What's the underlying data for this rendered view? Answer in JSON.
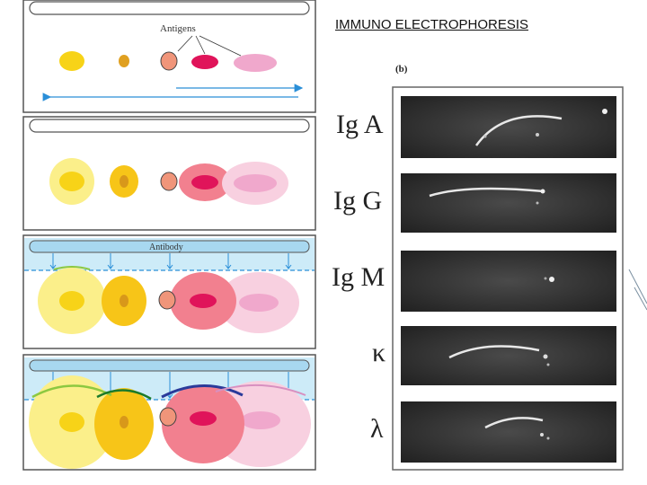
{
  "title": "IMMUNO ELECTROPHORESIS",
  "left_diagram": {
    "antigens_label": "Antigens",
    "antibody_label": "Antibody"
  },
  "right_photo": {
    "panel_label": "(b)",
    "rows": [
      {
        "label": "Ig A"
      },
      {
        "label": "Ig G"
      },
      {
        "label": "Ig M"
      },
      {
        "label": "κ"
      },
      {
        "label": "λ"
      }
    ]
  },
  "colors": {
    "yellow": "#f7d318",
    "orange": "#e0a020",
    "salmon": "#f0957a",
    "magenta": "#e0145a",
    "pink": "#f0a8cc",
    "trough": "#a8d8f0",
    "arrow": "#2a8fd8",
    "gel": "#3a3a3a"
  }
}
